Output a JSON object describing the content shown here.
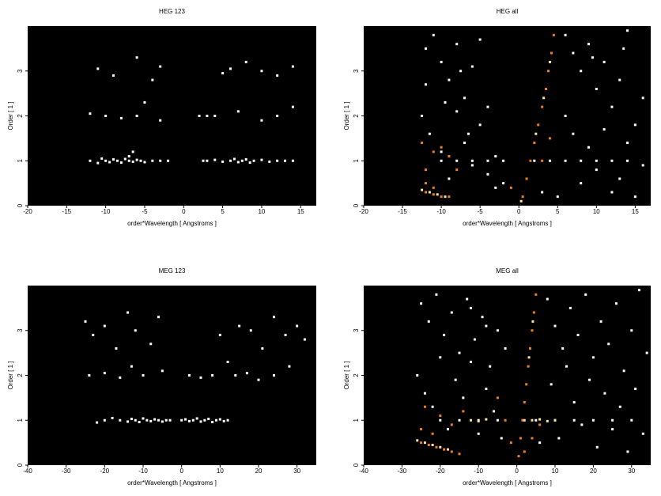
{
  "chart_data": [
    {
      "type": "scatter",
      "title": "HEG 123",
      "xlabel": "order*Wavelength [ Angstroms ]",
      "ylabel": "Order [ 1 ]",
      "background": "#000000",
      "xlim": [
        -20,
        17
      ],
      "ylim": [
        0,
        4
      ],
      "xticks": [
        -20,
        -15,
        -10,
        -5,
        0,
        5,
        10,
        15
      ],
      "yticks": [
        0,
        1,
        2,
        3
      ],
      "series": [
        {
          "color": "#ffffff",
          "x": [
            -12,
            -11,
            -10.5,
            -10,
            -9.5,
            -9,
            -8.5,
            -8,
            -7.5,
            -7,
            -6.5,
            -6,
            -5.5,
            -5,
            -4,
            -3,
            -2,
            2.5,
            3,
            4,
            5,
            6,
            6.5,
            7,
            7.5,
            8,
            8.5,
            9,
            10,
            11,
            12,
            13,
            14,
            -12,
            -10,
            -8,
            -6,
            -5,
            -3,
            2,
            3,
            4,
            7,
            10,
            12,
            14,
            -11,
            -9,
            -6,
            -4,
            -3,
            5,
            6,
            8,
            10,
            12,
            14,
            -6.5,
            -7
          ],
          "y": [
            1.0,
            0.95,
            1.05,
            1.0,
            0.97,
            1.03,
            1.0,
            0.96,
            1.04,
            1.0,
            0.98,
            1.02,
            1.0,
            0.97,
            1.0,
            1.0,
            1.0,
            1.0,
            1.0,
            1.02,
            0.98,
            1.0,
            1.04,
            0.97,
            1.0,
            1.03,
            0.96,
            1.0,
            1.02,
            0.98,
            1.0,
            1.0,
            1.0,
            2.05,
            2.0,
            1.95,
            2.0,
            2.3,
            1.9,
            2.0,
            2.0,
            2.0,
            2.1,
            1.9,
            2.0,
            2.2,
            3.05,
            2.9,
            3.3,
            2.8,
            3.1,
            2.95,
            3.05,
            3.2,
            3.0,
            2.9,
            3.1,
            1.2,
            1.1
          ]
        }
      ]
    },
    {
      "type": "scatter",
      "title": "HEG all",
      "xlabel": "order*Wavelength [ Angstroms ]",
      "ylabel": "Order [ 1 ]",
      "background": "#000000",
      "xlim": [
        -20,
        17
      ],
      "ylim": [
        0,
        4
      ],
      "xticks": [
        -20,
        -15,
        -10,
        -5,
        0,
        5,
        10,
        15
      ],
      "yticks": [
        0,
        1,
        2,
        3
      ],
      "series": [
        {
          "color": "#ffffff",
          "x": [
            -12,
            -11,
            -10,
            -9,
            -8,
            -7,
            -6,
            -5,
            -4,
            -12.5,
            -11.5,
            -10,
            -9,
            -8,
            -7,
            -6,
            -5,
            -4,
            -3,
            -3,
            -2,
            -10,
            -8,
            -6,
            -4,
            -2,
            2,
            4,
            6,
            8,
            10,
            12,
            14,
            6,
            7,
            8,
            9,
            10,
            11,
            12,
            13,
            14,
            15,
            16,
            6,
            7,
            8,
            9,
            10,
            11,
            12,
            13,
            14,
            15,
            16,
            5,
            3,
            -12,
            -9.5,
            -7.5,
            -6.5,
            9.5,
            13.5
          ],
          "y": [
            3.5,
            3.8,
            3.2,
            2.8,
            3.6,
            2.4,
            3.1,
            3.7,
            2.2,
            2.0,
            1.6,
            1.2,
            0.6,
            2.1,
            1.4,
            0.9,
            1.8,
            0.7,
            1.1,
            0.4,
            0.5,
            1.0,
            1.0,
            1.0,
            1.0,
            1.0,
            1.0,
            1.0,
            1.0,
            1.0,
            1.0,
            1.0,
            1.0,
            3.8,
            3.4,
            3.0,
            3.6,
            2.6,
            3.2,
            2.2,
            2.8,
            3.9,
            1.8,
            2.4,
            2.0,
            1.6,
            0.5,
            1.3,
            0.8,
            1.7,
            0.3,
            0.6,
            1.4,
            0.2,
            0.9,
            0.2,
            0.3,
            2.7,
            2.3,
            3.0,
            1.6,
            3.3,
            3.5
          ]
        },
        {
          "color": "#f0801e",
          "x": [
            -12,
            -11,
            -10,
            -9,
            -12,
            -11,
            -12.5,
            -11,
            -9,
            -12,
            0.5,
            1,
            1.5,
            2,
            2.5,
            3,
            3.5,
            3.8,
            4.2,
            4.5,
            3,
            4,
            -1,
            -10,
            -8
          ],
          "y": [
            0.3,
            0.25,
            0.2,
            0.2,
            0.5,
            0.4,
            1.4,
            1.2,
            1.1,
            0.8,
            0.2,
            0.6,
            1.0,
            1.4,
            1.8,
            2.2,
            2.6,
            3.0,
            3.4,
            3.8,
            1.0,
            1.5,
            0.4,
            1.3,
            0.8
          ]
        },
        {
          "color": "#ffe6a0",
          "x": [
            -12.5,
            -11.5,
            -10.5,
            -9.5,
            2.2,
            3.2,
            4.0,
            0.3
          ],
          "y": [
            0.35,
            0.3,
            0.25,
            0.2,
            1.6,
            2.4,
            3.2,
            0.1
          ]
        }
      ]
    },
    {
      "type": "scatter",
      "title": "MEG 123",
      "xlabel": "order*Wavelength [ Angstroms ]",
      "ylabel": "Order [ 1 ]",
      "background": "#000000",
      "xlim": [
        -40,
        35
      ],
      "ylim": [
        0,
        4
      ],
      "xticks": [
        -40,
        -30,
        -20,
        -10,
        0,
        10,
        20,
        30
      ],
      "yticks": [
        0,
        1,
        2,
        3
      ],
      "series": [
        {
          "color": "#ffffff",
          "x": [
            -22,
            -20,
            -18,
            -16,
            -14,
            -13,
            -12,
            -11,
            -10,
            -9,
            -8,
            -7,
            -6,
            -5,
            -4,
            -3,
            0,
            1,
            2,
            3,
            4,
            5,
            6,
            7,
            8,
            9,
            10,
            11,
            12,
            -24,
            -20,
            -16,
            -13,
            -10,
            -5,
            2,
            5,
            8,
            12,
            14,
            17,
            20,
            24,
            28,
            -25,
            -23,
            -20,
            -17,
            -14,
            -12,
            -8,
            -6,
            10,
            15,
            18,
            21,
            24,
            27,
            30,
            32
          ],
          "y": [
            0.95,
            1.0,
            1.05,
            1.0,
            0.97,
            1.03,
            1.0,
            0.96,
            1.04,
            1.0,
            0.98,
            1.02,
            1.0,
            0.97,
            1.0,
            1.0,
            1.0,
            1.02,
            0.98,
            1.0,
            1.04,
            0.97,
            1.0,
            1.03,
            0.96,
            1.0,
            1.02,
            0.98,
            1.0,
            2.0,
            2.05,
            1.95,
            2.2,
            2.0,
            2.1,
            2.0,
            1.95,
            2.0,
            2.3,
            2.0,
            2.05,
            1.9,
            2.0,
            2.2,
            3.2,
            2.9,
            3.1,
            2.6,
            3.4,
            3.0,
            2.7,
            3.3,
            2.9,
            3.1,
            3.0,
            2.6,
            3.3,
            2.9,
            3.1,
            2.8
          ]
        }
      ]
    },
    {
      "type": "scatter",
      "title": "MEG all",
      "xlabel": "order*Wavelength [ Angstroms ]",
      "ylabel": "Order [ 1 ]",
      "background": "#000000",
      "xlim": [
        -40,
        35
      ],
      "ylim": [
        0,
        4
      ],
      "xticks": [
        -40,
        -30,
        -20,
        -10,
        0,
        10,
        20,
        30
      ],
      "yticks": [
        0,
        1,
        2,
        3
      ],
      "series": [
        {
          "color": "#ffffff",
          "x": [
            -25,
            -23,
            -21,
            -19,
            -17,
            -15,
            -13,
            -11,
            -9,
            -7,
            -5,
            -26,
            -24,
            -22,
            -20,
            -18,
            -16,
            -14,
            -12,
            -10,
            -8,
            -6,
            -4,
            -3,
            -20,
            -15,
            -10,
            -5,
            5,
            10,
            15,
            20,
            25,
            30,
            8,
            10,
            12,
            14,
            16,
            18,
            20,
            22,
            24,
            26,
            28,
            30,
            32,
            34,
            9,
            11,
            13,
            15,
            17,
            19,
            21,
            23,
            25,
            27,
            29,
            31,
            33,
            -12,
            -8,
            6
          ],
          "y": [
            3.6,
            3.2,
            3.8,
            2.9,
            3.4,
            2.5,
            3.7,
            2.8,
            3.3,
            2.2,
            3.0,
            2.0,
            1.6,
            1.3,
            2.4,
            0.8,
            1.9,
            1.5,
            2.3,
            0.7,
            1.7,
            1.2,
            0.6,
            2.6,
            1.0,
            1.0,
            1.0,
            1.0,
            1.0,
            1.0,
            1.0,
            1.0,
            1.0,
            1.0,
            3.7,
            3.1,
            2.6,
            3.5,
            2.9,
            3.8,
            2.4,
            3.2,
            2.7,
            3.6,
            2.1,
            3.0,
            3.9,
            2.5,
            1.8,
            0.6,
            2.2,
            1.4,
            0.9,
            1.9,
            0.4,
            1.6,
            0.8,
            1.3,
            0.3,
            1.7,
            0.7,
            3.5,
            3.1,
            0.5
          ]
        },
        {
          "color": "#f0801e",
          "x": [
            -25,
            -23,
            -21,
            -19,
            -17,
            -15,
            -25,
            -22,
            -24,
            -20,
            -17,
            -14,
            0.5,
            1,
            1.5,
            2,
            2.5,
            3,
            3.5,
            4,
            4.5,
            5,
            -1.5,
            -3,
            -5,
            4,
            6,
            2
          ],
          "y": [
            0.5,
            0.45,
            0.4,
            0.35,
            0.3,
            0.25,
            0.8,
            0.7,
            1.3,
            1.1,
            0.9,
            1.2,
            0.2,
            0.6,
            1.0,
            1.4,
            1.8,
            2.2,
            2.6,
            3.0,
            3.4,
            3.8,
            0.5,
            1.0,
            1.5,
            0.6,
            0.9,
            0.3
          ]
        },
        {
          "color": "#ffe6a0",
          "x": [
            -26,
            -24,
            -22,
            -20,
            -18,
            -12,
            -10,
            -8,
            2,
            4,
            6,
            8,
            10,
            3.2,
            4.2
          ],
          "y": [
            0.55,
            0.5,
            0.45,
            0.4,
            0.35,
            1.0,
            0.98,
            1.02,
            1.0,
            1.0,
            1.02,
            0.98,
            1.0,
            2.4,
            3.2
          ]
        }
      ]
    }
  ]
}
